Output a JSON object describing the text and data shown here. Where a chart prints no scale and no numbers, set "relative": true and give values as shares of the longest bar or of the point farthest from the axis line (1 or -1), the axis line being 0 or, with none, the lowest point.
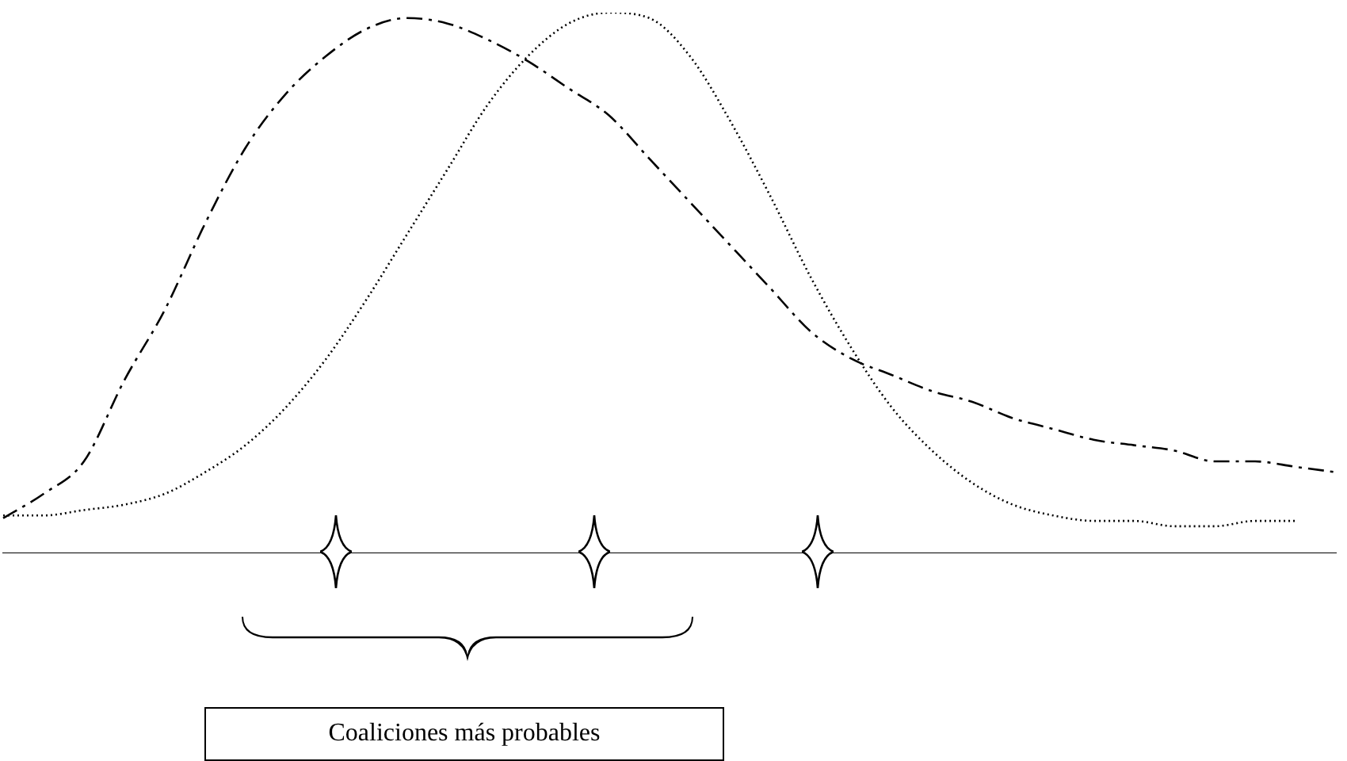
{
  "chart_data": {
    "type": "line",
    "relative": true,
    "legend": false,
    "grid": false,
    "marker": "none",
    "categories": [
      null,
      null,
      null,
      null,
      null,
      null,
      null,
      null,
      null,
      null,
      null,
      null,
      null,
      null,
      null,
      null,
      null,
      null,
      null,
      null,
      null,
      null,
      null,
      null,
      null,
      null,
      null,
      null,
      null,
      null,
      null,
      null,
      null,
      null
    ],
    "series": [
      {
        "color": "#000000",
        "line_style": "dashed",
        "values": [
          0.065,
          0.11,
          0.17,
          0.32,
          0.45,
          0.61,
          0.75,
          0.85,
          0.92,
          0.97,
          0.99,
          0.98,
          0.95,
          0.91,
          0.86,
          0.81,
          0.73,
          0.65,
          0.57,
          0.49,
          0.41,
          0.36,
          0.33,
          0.3,
          0.28,
          0.25,
          0.23,
          0.21,
          0.2,
          0.19,
          0.17,
          0.17,
          0.16,
          0.15
        ]
      },
      {
        "color": "#000000",
        "line_style": "dotted",
        "values": [
          0.07,
          0.07,
          0.08,
          0.09,
          0.11,
          0.15,
          0.2,
          0.27,
          0.36,
          0.47,
          0.59,
          0.71,
          0.83,
          0.92,
          0.98,
          1.0,
          0.99,
          0.92,
          0.8,
          0.66,
          0.51,
          0.38,
          0.27,
          0.19,
          0.13,
          0.09,
          0.07,
          0.06,
          0.06,
          0.05,
          0.05,
          0.06,
          0.06,
          null
        ]
      }
    ],
    "annotations": [
      "Coaliciones más probables"
    ]
  }
}
